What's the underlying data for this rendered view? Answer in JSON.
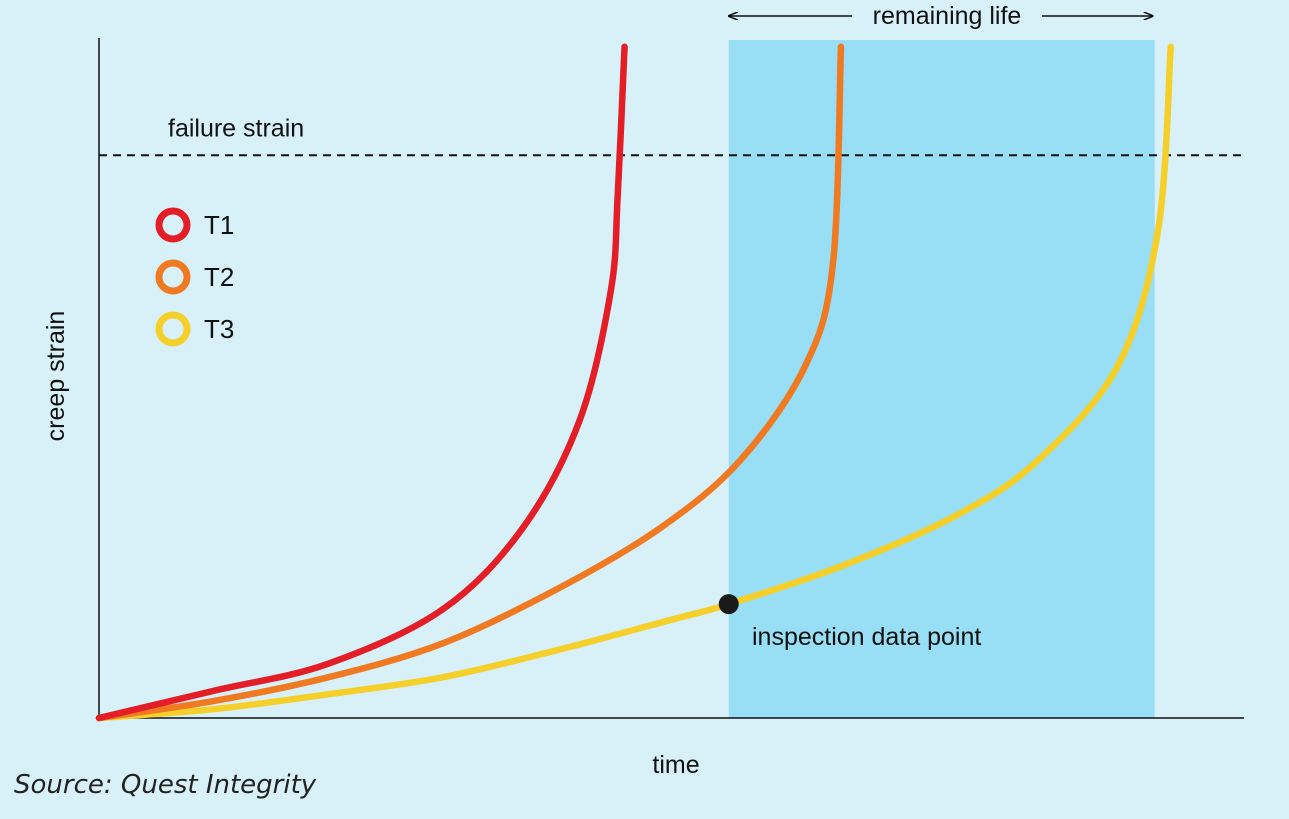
{
  "chart_data": {
    "type": "line",
    "title": "",
    "xlabel": "time",
    "ylabel": "creep strain",
    "grid": false,
    "legend": "left",
    "series": [
      {
        "name": "T1",
        "color": "#e41e26",
        "points": [
          [
            0,
            0
          ],
          [
            0.1,
            0.04
          ],
          [
            0.2,
            0.08
          ],
          [
            0.3,
            0.16
          ],
          [
            0.37,
            0.28
          ],
          [
            0.42,
            0.44
          ],
          [
            0.447,
            0.63
          ],
          [
            0.453,
            0.77
          ],
          [
            0.459,
            0.99
          ]
        ]
      },
      {
        "name": "T2",
        "color": "#f07a22",
        "points": [
          [
            0,
            0
          ],
          [
            0.1,
            0.025
          ],
          [
            0.2,
            0.06
          ],
          [
            0.3,
            0.11
          ],
          [
            0.4,
            0.19
          ],
          [
            0.49,
            0.28
          ],
          [
            0.56,
            0.38
          ],
          [
            0.617,
            0.52
          ],
          [
            0.641,
            0.67
          ],
          [
            0.648,
            0.99
          ]
        ]
      },
      {
        "name": "T3",
        "color": "#f6d02a",
        "points": [
          [
            0,
            0
          ],
          [
            0.1,
            0.013
          ],
          [
            0.2,
            0.035
          ],
          [
            0.3,
            0.06
          ],
          [
            0.4,
            0.1
          ],
          [
            0.5,
            0.145
          ],
          [
            0.55,
            0.168
          ],
          [
            0.65,
            0.225
          ],
          [
            0.75,
            0.3
          ],
          [
            0.82,
            0.38
          ],
          [
            0.89,
            0.52
          ],
          [
            0.925,
            0.72
          ],
          [
            0.936,
            0.99
          ]
        ]
      }
    ],
    "failure_strain": {
      "label": "failure strain",
      "y": 0.83
    },
    "remaining_life": {
      "label": "remaining life",
      "x_start": 0.55,
      "x_end": 0.922
    },
    "inspection_point": {
      "label": "inspection data point",
      "x": 0.55,
      "y": 0.168
    }
  },
  "source": "Source: Quest Integrity",
  "colors": {
    "background": "#d8f1f9",
    "band": "#98def4",
    "point": "#1a1a1a"
  }
}
